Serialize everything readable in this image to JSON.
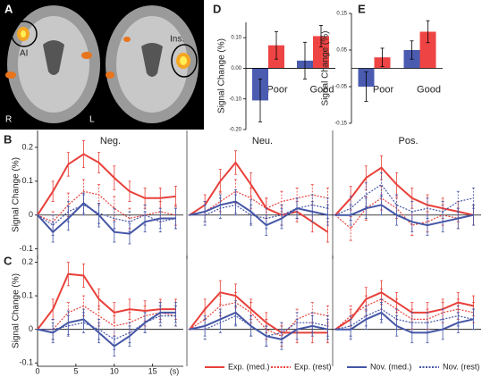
{
  "panel_a": {
    "label": "A",
    "annotations": [
      "AI",
      "Ins."
    ],
    "sides": [
      "R",
      "L"
    ]
  },
  "legend": [
    {
      "name": "Exp. (med.)",
      "color": "#e8403a",
      "dash": false
    },
    {
      "name": "Exp. (rest)",
      "color": "#e8403a",
      "dash": true
    },
    {
      "name": "Nov. (med.)",
      "color": "#4556a6",
      "dash": false
    },
    {
      "name": "Nov. (rest)",
      "color": "#4556a6",
      "dash": true
    }
  ],
  "chart_data": [
    {
      "type": "bar",
      "label": "D",
      "ylabel": "Signal Change (%)",
      "categories": [
        "Poor",
        "Good"
      ],
      "series": [
        {
          "color": "#4a5bb0",
          "values": [
            -0.105,
            0.025
          ],
          "errors": [
            0.07,
            0.06
          ]
        },
        {
          "color": "#ef4444",
          "values": [
            0.075,
            0.105
          ],
          "errors": [
            0.045,
            0.035
          ]
        }
      ],
      "ylim": [
        -0.2,
        0.15
      ],
      "yticks": [
        {
          "value": 0.1,
          "label": "0.10"
        },
        {
          "value": 0,
          "label": "0.00"
        },
        {
          "value": -0.1,
          "label": "-0.10"
        },
        {
          "value": -0.2,
          "label": "-0.20"
        }
      ]
    },
    {
      "type": "bar",
      "label": "E",
      "ylabel": "Signal Change (%)",
      "categories": [
        "Poor",
        "Good"
      ],
      "series": [
        {
          "color": "#4a5bb0",
          "values": [
            -0.05,
            0.05
          ],
          "errors": [
            0.04,
            0.025
          ]
        },
        {
          "color": "#ef4444",
          "values": [
            0.03,
            0.1
          ],
          "errors": [
            0.025,
            0.03
          ]
        }
      ],
      "ylim": [
        -0.15,
        0.15
      ],
      "yticks": [
        0.15,
        0.05,
        -0.05,
        -0.15
      ]
    },
    {
      "type": "line",
      "label": "B",
      "ylabel": "Signal Change (%)",
      "x": [
        0,
        2,
        4,
        6,
        8,
        10,
        12,
        14,
        16,
        18
      ],
      "xlim": [
        0,
        19
      ],
      "ylim": [
        -0.13,
        0.25
      ],
      "yticks": [
        -0.1,
        0,
        0.1,
        0.2
      ],
      "panels": [
        {
          "title": "Neg.",
          "series": [
            {
              "values": [
                0,
                0.07,
                0.15,
                0.18,
                0.155,
                0.11,
                0.07,
                0.05,
                0.05,
                0.055
              ],
              "errors": [
                0,
                0.03,
                0.035,
                0.04,
                0.03,
                0.035,
                0.03,
                0.03,
                0.03,
                0.03
              ]
            },
            {
              "values": [
                0,
                -0.02,
                0.03,
                0.07,
                0.06,
                0.02,
                -0.01,
                0,
                0.01,
                0
              ],
              "errors": [
                0,
                0.03,
                0.035,
                0.035,
                0.03,
                0.035,
                0.03,
                0.03,
                0.03,
                0.03
              ]
            },
            {
              "values": [
                0,
                -0.05,
                -0.01,
                0.035,
                0,
                -0.05,
                -0.055,
                -0.02,
                -0.01,
                -0.01
              ],
              "errors": [
                0,
                0.03,
                0.035,
                0.03,
                0.035,
                0.03,
                0.03,
                0.03,
                0.03,
                0.03
              ]
            },
            {
              "values": [
                0,
                -0.03,
                0.01,
                0.03,
                0.005,
                -0.01,
                -0.02,
                0,
                -0.02,
                -0.01
              ],
              "errors": [
                0,
                0.03,
                0.03,
                0.03,
                0.03,
                0.03,
                0.03,
                0.03,
                0.03,
                0.03
              ]
            }
          ]
        },
        {
          "title": "Neu.",
          "series": [
            {
              "values": [
                0,
                0.03,
                0.1,
                0.155,
                0.09,
                0.02,
                0,
                0.01,
                -0.02,
                -0.05
              ],
              "errors": [
                0,
                0.03,
                0.035,
                0.035,
                0.035,
                0.03,
                0.03,
                0.03,
                0.03,
                0.03
              ]
            },
            {
              "values": [
                0,
                0.01,
                0.04,
                0.07,
                0.05,
                0.02,
                0.04,
                0.05,
                0.06,
                0.05
              ],
              "errors": [
                0,
                0.03,
                0.03,
                0.035,
                0.03,
                0.03,
                0.03,
                0.03,
                0.03,
                0.03
              ]
            },
            {
              "values": [
                0,
                0.01,
                0.03,
                0.04,
                0.01,
                -0.03,
                -0.01,
                0.02,
                0.01,
                0
              ],
              "errors": [
                0,
                0.03,
                0.03,
                0.035,
                0.035,
                0.03,
                0.03,
                0.03,
                0.03,
                0.03
              ]
            },
            {
              "values": [
                0,
                0,
                0.02,
                0.03,
                0,
                -0.01,
                0,
                0.02,
                0.03,
                0.02
              ],
              "errors": [
                0,
                0.03,
                0.03,
                0.03,
                0.03,
                0.03,
                0.03,
                0.03,
                0.03,
                0.03
              ]
            }
          ]
        },
        {
          "title": "Pos.",
          "series": [
            {
              "values": [
                0,
                0.05,
                0.11,
                0.14,
                0.09,
                0.05,
                0.03,
                0.02,
                0.01,
                0
              ],
              "errors": [
                0,
                0.035,
                0.035,
                0.035,
                0.035,
                0.03,
                0.03,
                0.03,
                0.03,
                0.03
              ]
            },
            {
              "values": [
                0,
                -0.04,
                0.02,
                0.05,
                0.02,
                -0.03,
                -0.02,
                0,
                -0.01,
                0
              ],
              "errors": [
                0,
                0.035,
                0.035,
                0.035,
                0.03,
                0.03,
                0.03,
                0.03,
                0.03,
                0.03
              ]
            },
            {
              "values": [
                0,
                0,
                0.02,
                0.03,
                0,
                -0.02,
                -0.03,
                -0.02,
                -0.01,
                0
              ],
              "errors": [
                0,
                0.03,
                0.03,
                0.03,
                0.03,
                0.03,
                0.03,
                0.03,
                0.03,
                0.03
              ]
            },
            {
              "values": [
                0,
                0.02,
                0.06,
                0.09,
                0.03,
                0.01,
                0.02,
                0.01,
                0.04,
                0.05
              ],
              "errors": [
                0,
                0.035,
                0.035,
                0.035,
                0.03,
                0.03,
                0.03,
                0.03,
                0.03,
                0.03
              ]
            }
          ]
        }
      ]
    },
    {
      "type": "line",
      "label": "C",
      "ylabel": "Signal Change (%)",
      "x": [
        0,
        2,
        4,
        6,
        8,
        10,
        12,
        14,
        16,
        18
      ],
      "xlim": [
        0,
        19
      ],
      "xticks": [
        0,
        5,
        10,
        15
      ],
      "xunit": "(s)",
      "ylim": [
        -0.11,
        0.22
      ],
      "yticks": [
        -0.1,
        0,
        0.1,
        0.2
      ],
      "panels": [
        {
          "series": [
            {
              "values": [
                0,
                0.06,
                0.165,
                0.16,
                0.09,
                0.05,
                0.06,
                0.055,
                0.06,
                0.06
              ],
              "errors": [
                0,
                0.03,
                0.035,
                0.035,
                0.03,
                0.03,
                0.03,
                0.03,
                0.03,
                0.03
              ]
            },
            {
              "values": [
                0,
                0,
                0.05,
                0.07,
                0.04,
                0.01,
                0.02,
                0.04,
                0.05,
                0.04
              ],
              "errors": [
                0,
                0.03,
                0.03,
                0.03,
                0.03,
                0.03,
                0.03,
                0.03,
                0.03,
                0.03
              ]
            },
            {
              "values": [
                0,
                -0.01,
                0.02,
                0.03,
                -0.01,
                -0.05,
                -0.02,
                0.02,
                0.05,
                0.05
              ],
              "errors": [
                0,
                0.03,
                0.035,
                0.03,
                0.03,
                0.03,
                0.03,
                0.03,
                0.03,
                0.03
              ]
            },
            {
              "values": [
                0,
                0,
                0.01,
                0.02,
                0,
                -0.03,
                -0.01,
                0.02,
                0.04,
                0.04
              ],
              "errors": [
                0,
                0.03,
                0.03,
                0.03,
                0.03,
                0.03,
                0.03,
                0.03,
                0.03,
                0.03
              ]
            }
          ]
        },
        {
          "series": [
            {
              "values": [
                0,
                0.06,
                0.11,
                0.1,
                0.06,
                0.02,
                -0.01,
                -0.01,
                -0.01,
                -0.01
              ],
              "errors": [
                0,
                0.03,
                0.035,
                0.035,
                0.03,
                0.03,
                0.03,
                0.03,
                0.03,
                0.03
              ]
            },
            {
              "values": [
                0,
                0.03,
                0.07,
                0.08,
                0.05,
                0,
                -0.02,
                0.03,
                0.05,
                0.04
              ],
              "errors": [
                0,
                0.03,
                0.03,
                0.03,
                0.03,
                0.03,
                0.03,
                0.03,
                0.03,
                0.03
              ]
            },
            {
              "values": [
                0,
                0.01,
                0.03,
                0.05,
                0.01,
                -0.02,
                -0.03,
                0,
                0.01,
                0
              ],
              "errors": [
                0,
                0.03,
                0.03,
                0.035,
                0.03,
                0.03,
                0.03,
                0.03,
                0.03,
                0.03
              ]
            },
            {
              "values": [
                0,
                0,
                0.02,
                0.04,
                0.01,
                -0.02,
                -0.01,
                0.02,
                0.02,
                0.01
              ],
              "errors": [
                0,
                0.03,
                0.03,
                0.03,
                0.03,
                0.03,
                0.03,
                0.03,
                0.03,
                0.03
              ]
            }
          ]
        },
        {
          "series": [
            {
              "values": [
                0,
                0.03,
                0.09,
                0.11,
                0.08,
                0.05,
                0.05,
                0.06,
                0.08,
                0.07
              ],
              "errors": [
                0,
                0.03,
                0.035,
                0.035,
                0.03,
                0.03,
                0.03,
                0.03,
                0.03,
                0.03
              ]
            },
            {
              "values": [
                0,
                0.04,
                0.07,
                0.09,
                0.06,
                0.03,
                0.03,
                0.05,
                0.06,
                0.05
              ],
              "errors": [
                0,
                0.03,
                0.03,
                0.03,
                0.03,
                0.03,
                0.03,
                0.03,
                0.03,
                0.03
              ]
            },
            {
              "values": [
                0,
                0,
                0.03,
                0.05,
                0.01,
                -0.01,
                -0.01,
                0,
                0.02,
                0.03
              ],
              "errors": [
                0,
                0.03,
                0.03,
                0.03,
                0.03,
                0.03,
                0.03,
                0.03,
                0.03,
                0.03
              ]
            },
            {
              "values": [
                0,
                0.01,
                0.04,
                0.06,
                0.03,
                0.02,
                0.02,
                0.03,
                0.04,
                0.03
              ],
              "errors": [
                0,
                0.03,
                0.03,
                0.03,
                0.03,
                0.03,
                0.03,
                0.03,
                0.03,
                0.03
              ]
            }
          ]
        }
      ]
    }
  ]
}
